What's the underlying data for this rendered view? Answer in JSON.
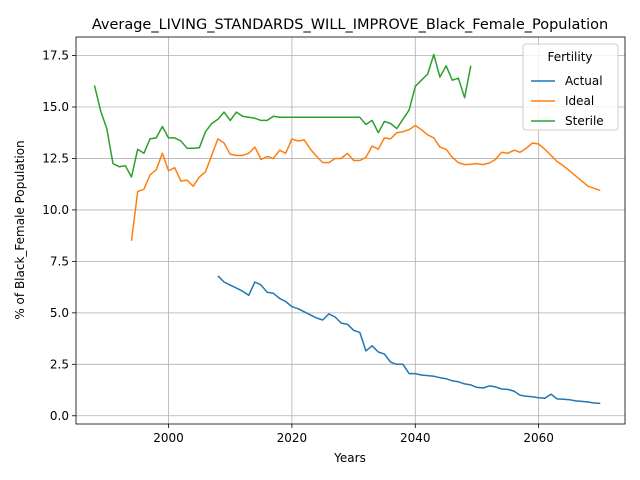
{
  "chart_data": {
    "type": "line",
    "title": "Average_LIVING_STANDARDS_WILL_IMPROVE_Black_Female_Population",
    "xlabel": "Years",
    "ylabel": "% of Black_Female Population",
    "xlim": [
      1985,
      2074
    ],
    "ylim": [
      -0.4,
      18.4
    ],
    "xticks": [
      2000,
      2020,
      2040,
      2060
    ],
    "yticks": [
      0.0,
      2.5,
      5.0,
      7.5,
      10.0,
      12.5,
      15.0,
      17.5
    ],
    "xtick_labels": [
      "2000",
      "2020",
      "2040",
      "2060"
    ],
    "ytick_labels": [
      "0.0",
      "2.5",
      "5.0",
      "7.5",
      "10.0",
      "12.5",
      "15.0",
      "17.5"
    ],
    "grid": true,
    "legend": {
      "title": "Fertility",
      "position": "top-right"
    },
    "series": [
      {
        "name": "Actual",
        "color": "#1f77b4",
        "x": [
          2008,
          2009,
          2010,
          2011,
          2012,
          2013,
          2014,
          2015,
          2016,
          2017,
          2018,
          2019,
          2020,
          2021,
          2022,
          2023,
          2024,
          2025,
          2026,
          2027,
          2028,
          2029,
          2030,
          2031,
          2032,
          2033,
          2034,
          2035,
          2036,
          2037,
          2038,
          2039,
          2040,
          2041,
          2042,
          2043,
          2044,
          2045,
          2046,
          2047,
          2048,
          2049,
          2050,
          2051,
          2052,
          2053,
          2054,
          2055,
          2056,
          2057,
          2058,
          2059,
          2060,
          2061,
          2062,
          2063,
          2064,
          2065,
          2066,
          2067,
          2068,
          2069,
          2070
        ],
        "y": [
          6.8,
          6.5,
          6.35,
          6.2,
          6.05,
          5.85,
          6.5,
          6.35,
          6.0,
          5.95,
          5.7,
          5.55,
          5.3,
          5.2,
          5.05,
          4.9,
          4.75,
          4.65,
          4.95,
          4.8,
          4.5,
          4.45,
          4.15,
          4.05,
          3.15,
          3.4,
          3.1,
          3.0,
          2.6,
          2.5,
          2.5,
          2.05,
          2.05,
          1.98,
          1.95,
          1.92,
          1.85,
          1.8,
          1.7,
          1.65,
          1.55,
          1.5,
          1.38,
          1.35,
          1.45,
          1.4,
          1.3,
          1.28,
          1.2,
          1.0,
          0.95,
          0.92,
          0.88,
          0.85,
          1.05,
          0.82,
          0.8,
          0.78,
          0.72,
          0.7,
          0.67,
          0.62,
          0.6
        ]
      },
      {
        "name": "Ideal",
        "color": "#ff7f0e",
        "x": [
          1994,
          1995,
          1996,
          1997,
          1998,
          1999,
          2000,
          2001,
          2002,
          2003,
          2004,
          2005,
          2006,
          2007,
          2008,
          2009,
          2010,
          2011,
          2012,
          2013,
          2014,
          2015,
          2016,
          2017,
          2018,
          2019,
          2020,
          2021,
          2022,
          2023,
          2024,
          2025,
          2026,
          2027,
          2028,
          2029,
          2030,
          2031,
          2032,
          2033,
          2034,
          2035,
          2036,
          2037,
          2038,
          2039,
          2040,
          2041,
          2042,
          2043,
          2044,
          2045,
          2046,
          2047,
          2048,
          2049,
          2050,
          2051,
          2052,
          2053,
          2054,
          2055,
          2056,
          2057,
          2058,
          2059,
          2060,
          2061,
          2062,
          2063,
          2064,
          2065,
          2066,
          2067,
          2068,
          2069,
          2070
        ],
        "y": [
          8.5,
          10.9,
          11.0,
          11.7,
          11.95,
          12.75,
          11.9,
          12.05,
          11.4,
          11.45,
          11.15,
          11.6,
          11.85,
          12.65,
          13.45,
          13.25,
          12.7,
          12.65,
          12.65,
          12.75,
          13.05,
          12.45,
          12.6,
          12.5,
          12.9,
          12.75,
          13.45,
          13.35,
          13.4,
          12.95,
          12.6,
          12.3,
          12.3,
          12.5,
          12.5,
          12.75,
          12.4,
          12.4,
          12.55,
          13.1,
          12.95,
          13.5,
          13.45,
          13.75,
          13.8,
          13.9,
          14.1,
          13.9,
          13.65,
          13.5,
          13.05,
          12.95,
          12.55,
          12.3,
          12.2,
          12.22,
          12.25,
          12.2,
          12.28,
          12.45,
          12.8,
          12.75,
          12.9,
          12.8,
          13.0,
          13.25,
          13.2,
          12.95,
          12.65,
          12.35,
          12.15,
          11.9,
          11.65,
          11.4,
          11.15,
          11.05,
          10.95
        ]
      },
      {
        "name": "Sterile",
        "color": "#2ca02c",
        "x": [
          1988,
          1989,
          1990,
          1991,
          1992,
          1993,
          1994,
          1995,
          1996,
          1997,
          1998,
          1999,
          2000,
          2001,
          2002,
          2003,
          2004,
          2005,
          2006,
          2007,
          2008,
          2009,
          2010,
          2011,
          2012,
          2013,
          2014,
          2015,
          2016,
          2017,
          2018,
          2019,
          2020,
          2021,
          2022,
          2023,
          2024,
          2025,
          2026,
          2027,
          2028,
          2029,
          2030,
          2031,
          2032,
          2033,
          2034,
          2035,
          2036,
          2037,
          2038,
          2039,
          2040,
          2041,
          2042,
          2043,
          2044,
          2045,
          2046,
          2047,
          2048,
          2049
        ],
        "y": [
          16.05,
          14.8,
          13.95,
          12.25,
          12.1,
          12.15,
          11.6,
          12.95,
          12.75,
          13.45,
          13.5,
          14.05,
          13.5,
          13.5,
          13.35,
          13.0,
          13.0,
          13.02,
          13.8,
          14.2,
          14.4,
          14.75,
          14.35,
          14.75,
          14.55,
          14.5,
          14.45,
          14.35,
          14.35,
          14.55,
          14.5,
          14.5,
          14.5,
          14.5,
          14.5,
          14.5,
          14.5,
          14.5,
          14.5,
          14.5,
          14.5,
          14.5,
          14.5,
          14.5,
          14.15,
          14.35,
          13.75,
          14.3,
          14.2,
          13.95,
          14.4,
          14.85,
          16.0,
          16.3,
          16.6,
          17.55,
          16.45,
          17.0,
          16.3,
          16.4,
          15.45,
          17.0
        ]
      }
    ]
  }
}
